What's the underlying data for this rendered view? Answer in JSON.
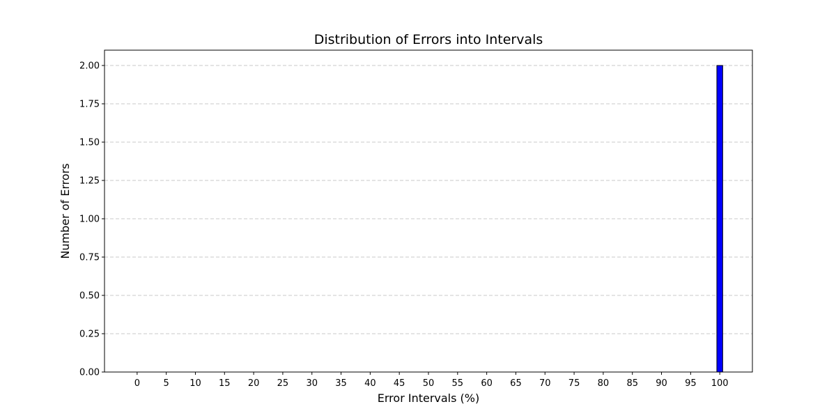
{
  "chart_data": {
    "type": "bar",
    "title": "Distribution of Errors into Intervals",
    "xlabel": "Error Intervals (%)",
    "ylabel": "Number of Errors",
    "x_ticks": [
      "0",
      "5",
      "10",
      "15",
      "20",
      "25",
      "30",
      "35",
      "40",
      "45",
      "50",
      "55",
      "60",
      "65",
      "70",
      "75",
      "80",
      "85",
      "90",
      "95",
      "100"
    ],
    "x_tick_values": [
      0,
      5,
      10,
      15,
      20,
      25,
      30,
      35,
      40,
      45,
      50,
      55,
      60,
      65,
      70,
      75,
      80,
      85,
      90,
      95,
      100
    ],
    "y_ticks": [
      "0.00",
      "0.25",
      "0.50",
      "0.75",
      "1.00",
      "1.25",
      "1.50",
      "1.75",
      "2.00"
    ],
    "y_tick_values": [
      0,
      0.25,
      0.5,
      0.75,
      1,
      1.25,
      1.5,
      1.75,
      2
    ],
    "bins": [
      {
        "start": 99.5,
        "end": 100.5,
        "value": 2
      }
    ],
    "xlim": [
      -5.6,
      105.6
    ],
    "ylim": [
      0,
      2.1
    ],
    "grid": "y-dashed",
    "colors": {
      "bar_fill": "#0000ff",
      "bar_edge": "#000000",
      "grid": "#c8c8c8",
      "axis": "#000000"
    }
  }
}
